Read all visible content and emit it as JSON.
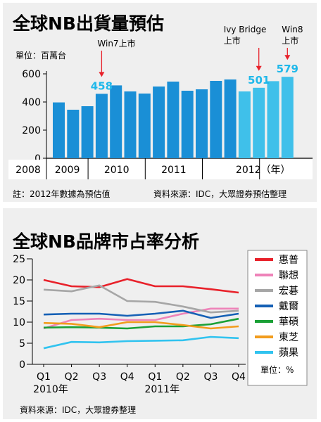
{
  "panel1": {
    "title": "全球NB出貨量預估",
    "unit": "單位：百萬台",
    "footnote": "註：2012年數據為預估值",
    "source": "資料來源：IDC，大眾證券預估整理"
  },
  "panel2": {
    "title": "全球NB品牌市占率分析",
    "unit": "單位：%",
    "source": "資料來源：IDC，大眾證券整理"
  },
  "chart_data": [
    {
      "type": "bar",
      "title": "全球NB出貨量預估",
      "ylabel": "單位：百萬台",
      "ylim": [
        0,
        600
      ],
      "yticks": [
        0,
        200,
        400,
        600
      ],
      "year_labels": [
        "2008",
        "2009",
        "2010",
        "2011",
        "2012（年）"
      ],
      "values": [
        397,
        345,
        370,
        458,
        518,
        475,
        460,
        510,
        545,
        480,
        490,
        550,
        560,
        475,
        501,
        548,
        579
      ],
      "estimate_from_index": 13,
      "colors": {
        "actual": "#1a8fd6",
        "estimate": "#3fc0ea"
      },
      "annotations": [
        {
          "text": "Win7上市",
          "index": 3,
          "value_label": "458"
        },
        {
          "lines": [
            "Ivy Bridge",
            "上市"
          ],
          "index": 14,
          "value_label": "501"
        },
        {
          "lines": [
            "Win8",
            "上市"
          ],
          "index": 16,
          "value_label": "579"
        }
      ],
      "accent_color": "#e8212a",
      "label_color": "#1fb8ea"
    },
    {
      "type": "line",
      "title": "全球NB品牌市占率分析",
      "x": [
        "Q1",
        "Q2",
        "Q3",
        "Q4",
        "Q1",
        "Q2",
        "Q3",
        "Q4"
      ],
      "x_year_labels": [
        "2010年",
        "2011年"
      ],
      "ylim": [
        0,
        25
      ],
      "yticks": [
        0,
        5,
        10,
        15,
        20,
        25
      ],
      "series": [
        {
          "name": "惠普",
          "color": "#e8212a",
          "values": [
            20.0,
            18.5,
            18.3,
            20.2,
            18.5,
            18.5,
            17.8,
            17.0
          ]
        },
        {
          "name": "聯想",
          "color": "#ee83b9",
          "values": [
            8.5,
            10.5,
            10.8,
            10.5,
            10.5,
            12.0,
            13.2,
            13.2
          ]
        },
        {
          "name": "宏碁",
          "color": "#a6a6a6",
          "values": [
            17.7,
            17.3,
            18.7,
            15.0,
            14.8,
            13.7,
            12.3,
            12.7
          ]
        },
        {
          "name": "戴爾",
          "color": "#1560b5",
          "values": [
            11.8,
            12.0,
            12.0,
            11.5,
            12.0,
            12.7,
            11.0,
            12.0
          ]
        },
        {
          "name": "華碩",
          "color": "#1aa036",
          "values": [
            8.7,
            8.8,
            8.7,
            8.5,
            9.0,
            9.0,
            9.5,
            10.8
          ]
        },
        {
          "name": "東芝",
          "color": "#f29c1d",
          "values": [
            9.8,
            9.6,
            8.8,
            10.0,
            10.0,
            9.3,
            8.5,
            9.0
          ]
        },
        {
          "name": "蘋果",
          "color": "#31c3ef",
          "values": [
            3.8,
            5.3,
            5.2,
            5.5,
            5.6,
            5.7,
            6.5,
            6.2
          ]
        }
      ],
      "legend_placement": "right"
    }
  ]
}
